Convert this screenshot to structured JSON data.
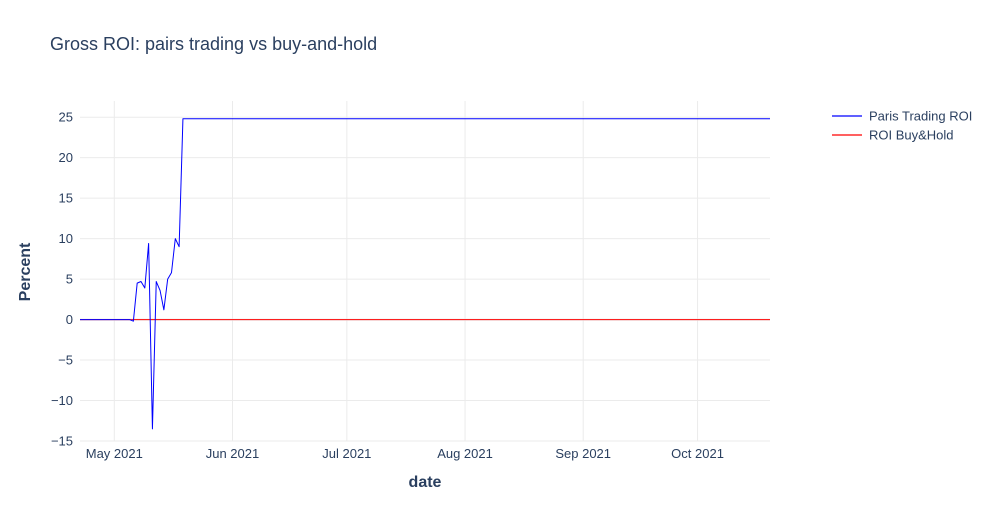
{
  "chart_data": {
    "type": "line",
    "title": "Gross ROI: pairs trading vs buy-and-hold",
    "xlabel": "date",
    "ylabel": "Percent",
    "xlim": [
      "2021-04-22",
      "2021-10-20"
    ],
    "ylim": [
      -15,
      27
    ],
    "x_ticks": [
      {
        "date": "2021-05-01",
        "label": "May 2021"
      },
      {
        "date": "2021-06-01",
        "label": "Jun 2021"
      },
      {
        "date": "2021-07-01",
        "label": "Jul 2021"
      },
      {
        "date": "2021-08-01",
        "label": "Aug 2021"
      },
      {
        "date": "2021-09-01",
        "label": "Sep 2021"
      },
      {
        "date": "2021-10-01",
        "label": "Oct 2021"
      }
    ],
    "y_ticks": [
      25,
      20,
      15,
      10,
      5,
      0,
      -5,
      -10,
      -15
    ],
    "y_tick_labels": [
      "25",
      "20",
      "15",
      "10",
      "5",
      "0",
      "−5",
      "−10",
      "−15"
    ],
    "grid": true,
    "legend_position": "top-right",
    "series": [
      {
        "name": "Paris Trading ROI",
        "color": "#0000ff",
        "points": [
          [
            "2021-04-22",
            0
          ],
          [
            "2021-05-01",
            0
          ],
          [
            "2021-05-02",
            0
          ],
          [
            "2021-05-05",
            0
          ],
          [
            "2021-05-06",
            -0.2
          ],
          [
            "2021-05-07",
            4.5
          ],
          [
            "2021-05-08",
            4.7
          ],
          [
            "2021-05-09",
            3.9
          ],
          [
            "2021-05-10",
            9.4
          ],
          [
            "2021-05-11",
            -13.5
          ],
          [
            "2021-05-12",
            4.7
          ],
          [
            "2021-05-13",
            3.6
          ],
          [
            "2021-05-14",
            1.2
          ],
          [
            "2021-05-15",
            5.0
          ],
          [
            "2021-05-16",
            5.8
          ],
          [
            "2021-05-17",
            10.0
          ],
          [
            "2021-05-18",
            9.0
          ],
          [
            "2021-05-19",
            24.8
          ],
          [
            "2021-05-20",
            24.8
          ],
          [
            "2021-10-20",
            24.8
          ]
        ]
      },
      {
        "name": "ROI Buy&Hold",
        "color": "#ff0000",
        "points": [
          [
            "2021-04-22",
            0
          ],
          [
            "2021-10-20",
            0
          ]
        ]
      }
    ]
  }
}
